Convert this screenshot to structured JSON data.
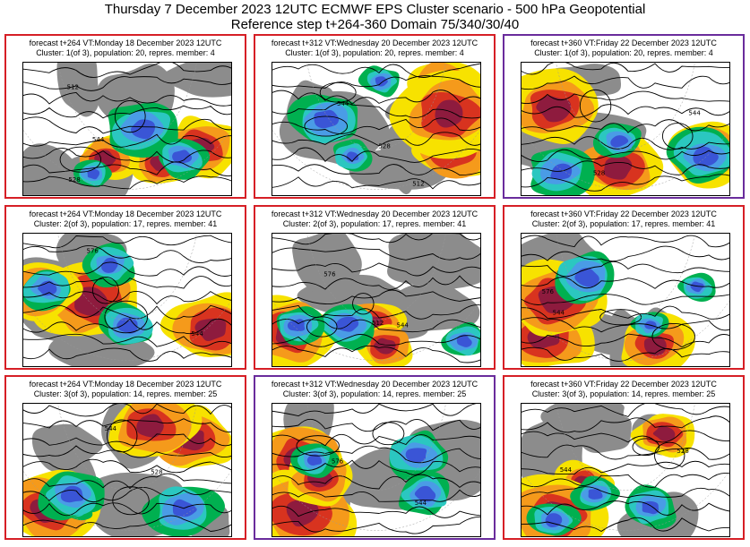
{
  "header": {
    "line1": "Thursday 7 December 2023 12UTC ECMWF EPS Cluster scenario - 500 hPa Geopotential",
    "line2": "Reference step t+264-360 Domain 75/340/30/40"
  },
  "colors": {
    "border_red": "#d61f26",
    "border_purple": "#6a2c9c",
    "land": "#8c8c8c",
    "sea": "#ffffff",
    "contour": "#000000",
    "anomaly_pos": [
      "#f7e200",
      "#f59a1b",
      "#d8331f",
      "#8e1b3e"
    ],
    "anomaly_neg": [
      "#00b050",
      "#2bc7c0",
      "#4a9ce6",
      "#3a55d6"
    ]
  },
  "chart_data": {
    "type": "heatmap",
    "title": "Thursday 7 December 2023 12UTC ECMWF EPS Cluster scenario - 500 hPa Geopotential",
    "subtitle": "Reference step t+264-360 Domain 75/340/30/40",
    "panels": [
      {
        "line1": "forecast t+264 VT:Monday 18 December 2023 12UTC",
        "line2": "Cluster: 1(of 3), population: 20, repres. member: 4",
        "step": 264,
        "cluster": 1,
        "population": 20,
        "member": 4,
        "border": "red",
        "labels": [
          "512",
          "528",
          "544"
        ]
      },
      {
        "line1": "forecast t+312 VT:Wednesday 20 December 2023 12UTC",
        "line2": "Cluster: 1(of 3), population: 20, repres. member: 4",
        "step": 312,
        "cluster": 1,
        "population": 20,
        "member": 4,
        "border": "red",
        "labels": [
          "512",
          "528",
          "544"
        ]
      },
      {
        "line1": "forecast t+360 VT:Friday 22 December 2023 12UTC",
        "line2": "Cluster: 1(of 3), population: 20, repres. member: 4",
        "step": 360,
        "cluster": 1,
        "population": 20,
        "member": 4,
        "border": "purple",
        "labels": [
          "528",
          "544"
        ]
      },
      {
        "line1": "forecast t+264 VT:Monday 18 December 2023 12UTC",
        "line2": "Cluster: 2(of 3), population: 17, repres. member: 41",
        "step": 264,
        "cluster": 2,
        "population": 17,
        "member": 41,
        "border": "red",
        "labels": [
          "544",
          "576"
        ]
      },
      {
        "line1": "forecast t+312 VT:Wednesday 20 December 2023 12UTC",
        "line2": "Cluster: 2(of 3), population: 17, repres. member: 41",
        "step": 312,
        "cluster": 2,
        "population": 17,
        "member": 41,
        "border": "red",
        "labels": [
          "512",
          "544",
          "576"
        ]
      },
      {
        "line1": "forecast t+360 VT:Friday 22 December 2023 12UTC",
        "line2": "Cluster: 2(of 3), population: 17, repres. member: 41",
        "step": 360,
        "cluster": 2,
        "population": 17,
        "member": 41,
        "border": "red",
        "labels": [
          "544",
          "576"
        ]
      },
      {
        "line1": "forecast t+264 VT:Monday 18 December 2023 12UTC",
        "line2": "Cluster: 3(of 3), population: 14, repres. member: 25",
        "step": 264,
        "cluster": 3,
        "population": 14,
        "member": 25,
        "border": "red",
        "labels": [
          "528",
          "544"
        ]
      },
      {
        "line1": "forecast t+312 VT:Wednesday 20 December 2023 12UTC",
        "line2": "Cluster: 3(of 3), population: 14, repres. member: 25",
        "step": 312,
        "cluster": 3,
        "population": 14,
        "member": 25,
        "border": "purple",
        "labels": [
          "576",
          "544"
        ]
      },
      {
        "line1": "forecast t+360 VT:Friday 22 December 2023 12UTC",
        "line2": "Cluster: 3(of 3), population: 14, repres. member: 25",
        "step": 360,
        "cluster": 3,
        "population": 14,
        "member": 25,
        "border": "red",
        "labels": [
          "528",
          "544"
        ]
      }
    ]
  }
}
